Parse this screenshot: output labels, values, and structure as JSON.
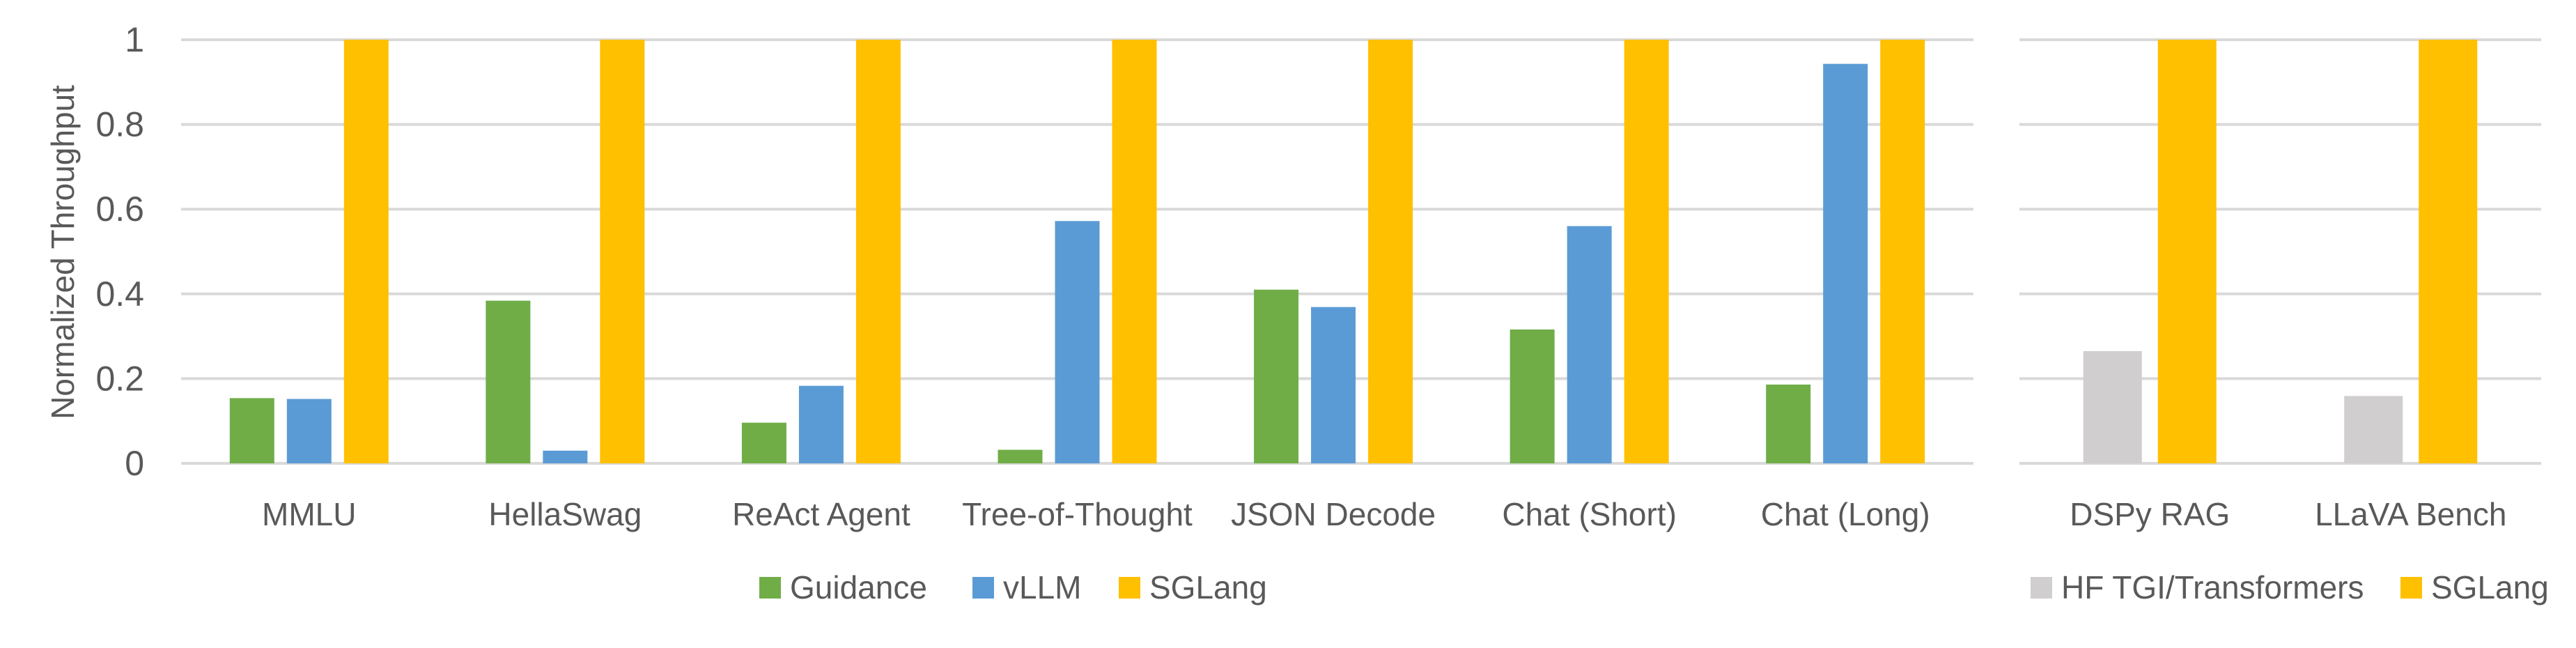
{
  "chart_data": [
    {
      "type": "bar",
      "ylabel": "Normalized Throughput",
      "xlabel": "",
      "ylim": [
        0,
        1
      ],
      "yticks": [
        "0",
        "0.2",
        "0.4",
        "0.6",
        "0.8",
        "1"
      ],
      "grid": true,
      "legend_position": "bottom",
      "categories": [
        "MMLU",
        "HellaSwag",
        "ReAct Agent",
        "Tree-of-Thought",
        "JSON Decode",
        "Chat (Short)",
        "Chat (Long)"
      ],
      "series": [
        {
          "name": "Guidance",
          "color": "#70AD47",
          "values": [
            0.154,
            0.384,
            0.096,
            0.032,
            0.41,
            0.316,
            0.186
          ]
        },
        {
          "name": "vLLM",
          "color": "#5B9BD5",
          "values": [
            0.152,
            0.03,
            0.183,
            0.572,
            0.369,
            0.56,
            0.943
          ]
        },
        {
          "name": "SGLang",
          "color": "#FFC000",
          "values": [
            1,
            1,
            1,
            1,
            1,
            1,
            1
          ]
        }
      ]
    },
    {
      "type": "bar",
      "ylim": [
        0,
        1
      ],
      "grid": true,
      "legend_position": "bottom",
      "categories": [
        "DSPy RAG",
        "LLaVA Bench"
      ],
      "series": [
        {
          "name": "HF TGI/Transformers",
          "color": "#D0CECE",
          "values": [
            0.265,
            0.159
          ]
        },
        {
          "name": "SGLang",
          "color": "#FFC000",
          "values": [
            1,
            1
          ]
        }
      ]
    }
  ]
}
